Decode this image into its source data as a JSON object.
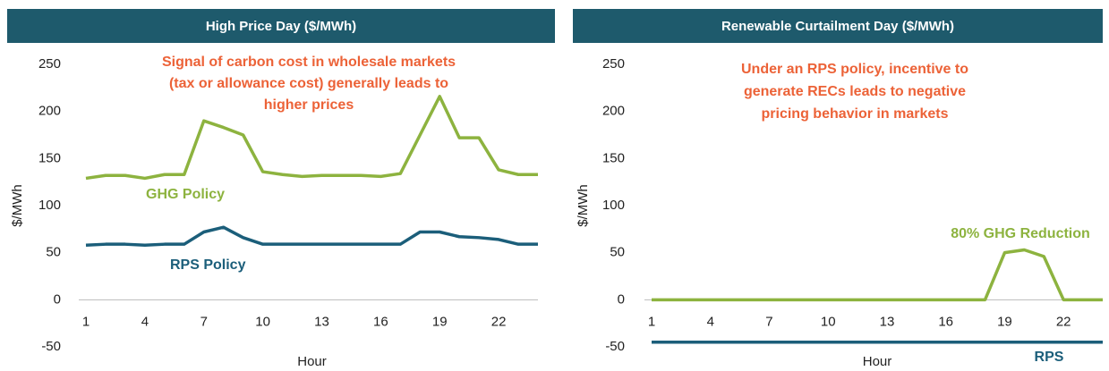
{
  "chart_data": [
    {
      "type": "line",
      "title": "High Price Day ($/MWh)",
      "xlabel": "Hour",
      "ylabel": "$/MWh",
      "annotation": [
        "Signal of carbon cost in wholesale markets",
        "(tax or allowance cost) generally leads to",
        "higher prices"
      ],
      "x": [
        1,
        2,
        3,
        4,
        5,
        6,
        7,
        8,
        9,
        10,
        11,
        12,
        13,
        14,
        15,
        16,
        17,
        18,
        19,
        20,
        21,
        22,
        23,
        24
      ],
      "xlim": [
        1,
        24
      ],
      "xticks": [
        1,
        4,
        7,
        10,
        13,
        16,
        19,
        22
      ],
      "ylim": [
        -50,
        250
      ],
      "yticks": [
        -50,
        0,
        50,
        100,
        150,
        200,
        250
      ],
      "series": [
        {
          "name": "GHG Policy",
          "color": "#8db33f",
          "values": [
            129,
            132,
            132,
            129,
            133,
            133,
            190,
            183,
            175,
            136,
            133,
            131,
            132,
            132,
            132,
            131,
            134,
            175,
            216,
            172,
            172,
            138,
            133,
            133
          ]
        },
        {
          "name": "RPS Policy",
          "color": "#1b5e7a",
          "values": [
            58,
            59,
            59,
            58,
            59,
            59,
            72,
            77,
            66,
            59,
            59,
            59,
            59,
            59,
            59,
            59,
            59,
            72,
            72,
            67,
            66,
            64,
            59,
            59
          ]
        }
      ]
    },
    {
      "type": "line",
      "title": "Renewable Curtailment Day ($/MWh)",
      "xlabel": "Hour",
      "ylabel": "$/MWh",
      "annotation": [
        "Under an RPS policy, incentive to",
        "generate RECs leads to negative",
        "pricing behavior in markets"
      ],
      "x": [
        1,
        2,
        3,
        4,
        5,
        6,
        7,
        8,
        9,
        10,
        11,
        12,
        13,
        14,
        15,
        16,
        17,
        18,
        19,
        20,
        21,
        22,
        23,
        24
      ],
      "xlim": [
        1,
        24
      ],
      "xticks": [
        1,
        4,
        7,
        10,
        13,
        16,
        19,
        22
      ],
      "ylim": [
        -50,
        250
      ],
      "yticks": [
        -50,
        0,
        50,
        100,
        150,
        200,
        250
      ],
      "series": [
        {
          "name": "80% GHG Reduction",
          "color": "#8db33f",
          "values": [
            0,
            0,
            0,
            0,
            0,
            0,
            0,
            0,
            0,
            0,
            0,
            0,
            0,
            0,
            0,
            0,
            0,
            0,
            50,
            53,
            46,
            0,
            0,
            0
          ]
        },
        {
          "name": "RPS",
          "color": "#1b5e7a",
          "values": [
            -45,
            -45,
            -45,
            -45,
            -45,
            -45,
            -45,
            -45,
            -45,
            -45,
            -45,
            -45,
            -45,
            -45,
            -45,
            -45,
            -45,
            -45,
            -45,
            -45,
            -45,
            -45,
            -45,
            -45
          ]
        }
      ]
    }
  ]
}
